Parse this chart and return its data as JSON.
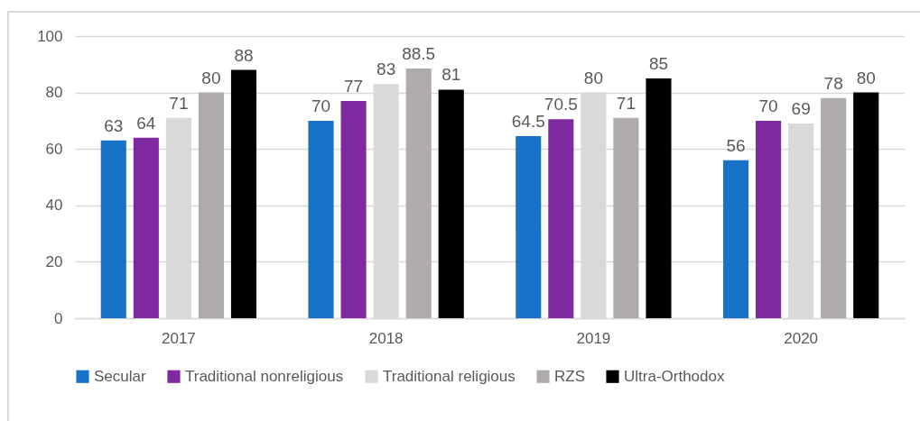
{
  "chart_data": {
    "type": "bar",
    "categories": [
      "2017",
      "2018",
      "2019",
      "2020"
    ],
    "series": [
      {
        "name": "Secular",
        "color": "#1872c8",
        "values": [
          63,
          70,
          64.5,
          56
        ]
      },
      {
        "name": "Traditional nonreligious",
        "color": "#7f2aa0",
        "values": [
          64,
          77,
          70.5,
          70
        ]
      },
      {
        "name": "Traditional religious",
        "color": "#d9d9d9",
        "values": [
          71,
          83,
          80,
          69
        ]
      },
      {
        "name": "RZS",
        "color": "#afabab",
        "values": [
          80,
          88.5,
          71,
          78
        ]
      },
      {
        "name": "Ultra-Orthodox",
        "color": "#000000",
        "values": [
          88,
          81,
          85,
          80
        ]
      }
    ],
    "ylim": [
      0,
      100
    ],
    "yticks": [
      0,
      20,
      40,
      60,
      80,
      100
    ],
    "grid": "y",
    "legend": "bottom",
    "data_labels": true
  }
}
